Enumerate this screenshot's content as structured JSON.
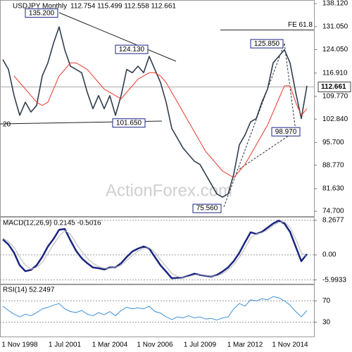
{
  "chart_data": [
    {
      "type": "line",
      "title": "USDJPY Monthly",
      "subtitle": "112.754 115.499 112.558 112.661",
      "watermark": "ActionForex.com",
      "edge_label": "20",
      "categories": [
        null,
        null,
        null,
        "1 Nov 1998",
        null,
        null,
        null,
        null,
        null,
        null,
        null,
        "1 Jul 2001",
        null,
        null,
        null,
        null,
        null,
        null,
        null,
        "1 Mar 2004",
        null,
        null,
        null,
        null,
        null,
        null,
        null,
        "1 Nov 2006",
        null,
        null,
        null,
        null,
        null,
        null,
        null,
        "1 Jul 2009",
        null,
        null,
        null,
        null,
        null,
        null,
        null,
        "1 Mar 2012",
        null,
        null,
        null,
        null,
        null,
        null,
        null,
        "1 Nov 2014",
        null,
        null,
        null
      ],
      "series": [
        {
          "color": "#2f3d4c",
          "values": [
            121,
            118,
            110,
            104,
            108,
            105,
            107,
            116,
            120,
            126,
            131,
            124,
            119,
            118,
            117,
            111,
            106,
            110,
            106,
            110,
            104,
            110,
            118,
            117,
            119,
            117,
            122,
            118,
            114,
            108,
            100,
            97,
            94,
            92,
            90,
            89,
            86,
            83,
            80,
            79,
            80,
            86,
            95,
            98,
            102,
            103,
            108,
            112,
            120,
            122,
            124,
            120,
            111,
            103,
            113
          ]
        },
        {
          "color": "#e8392f",
          "values": [
            null,
            null,
            116,
            114,
            112,
            110,
            108,
            107,
            108,
            112,
            116,
            118,
            120,
            120,
            119,
            118,
            116,
            114,
            112,
            111,
            110,
            109,
            111,
            113,
            115,
            116,
            117,
            117,
            116,
            114,
            111,
            108,
            105,
            102,
            99,
            96,
            93,
            91,
            89,
            87,
            86,
            85,
            87,
            89,
            92,
            95,
            98,
            101,
            105,
            109,
            113,
            113,
            108,
            104,
            106
          ]
        }
      ],
      "ylim": [
        73,
        139.2
      ],
      "yticks": [
        {
          "value": 138.12,
          "label": "138.120"
        },
        {
          "value": 131.05,
          "label": "131.050"
        },
        {
          "value": 124.05,
          "label": "124.050"
        },
        {
          "value": 116.91,
          "label": "116.910"
        },
        {
          "value": 109.77,
          "label": "109.770"
        },
        {
          "value": 102.84,
          "label": "102.840"
        },
        {
          "value": 95.7,
          "label": "95.700"
        },
        {
          "value": 88.77,
          "label": "88.770"
        },
        {
          "value": 81.63,
          "label": "81.630"
        },
        {
          "value": 74.7,
          "label": "74.700"
        }
      ],
      "last_price": {
        "value": 112.661,
        "label": "112.661"
      },
      "level": {
        "value": 130.05,
        "label": "FE 61.8"
      },
      "annotations": [
        {
          "value": 135.2,
          "label": "135.200",
          "index": 10
        },
        {
          "value": 124.13,
          "label": "124.130",
          "index": 26
        },
        {
          "value": 125.85,
          "label": "125.850",
          "index": 50
        },
        {
          "value": 101.65,
          "label": "101.650",
          "index": 20
        },
        {
          "value": 98.97,
          "label": "98.970",
          "index": 53
        },
        {
          "value": 75.56,
          "label": "75.560",
          "index": 39
        }
      ]
    },
    {
      "type": "line",
      "title": "MACD(12,26,9) 0.2145 -0.5016",
      "series": [
        {
          "color": "#1a2580",
          "values": [
            3.7,
            2.5,
            0.5,
            -2.5,
            -3.9,
            -3.6,
            -2.5,
            -0.5,
            2,
            3.8,
            6,
            6.2,
            3.5,
            1,
            -0.8,
            -2,
            -3,
            -3.2,
            -3.5,
            -3,
            -3,
            -2,
            -0.5,
            0.8,
            1.5,
            2,
            1.5,
            -0.5,
            -2.5,
            -4,
            -5.6,
            -5.5,
            -5.4,
            -5,
            -4.5,
            -4.8,
            -5,
            -5.2,
            -4.8,
            -4,
            -3,
            -1.5,
            0.5,
            3,
            5.4,
            5,
            5.5,
            6.5,
            7.5,
            8.2,
            7.5,
            5.5,
            2,
            -1.5,
            0.2
          ]
        },
        {
          "color": "#b5b5b5",
          "values": [
            4,
            3.2,
            1.8,
            -0.5,
            -2.5,
            -3.4,
            -3,
            -1.8,
            0.3,
            2.5,
            4.5,
            5.8,
            5,
            2.8,
            0.8,
            -0.8,
            -2,
            -2.8,
            -3.2,
            -3.2,
            -3,
            -2.5,
            -1.3,
            -0.1,
            0.9,
            1.6,
            1.7,
            0.6,
            -1.2,
            -2.8,
            -4.4,
            -5.2,
            -5.4,
            -5.2,
            -4.8,
            -4.7,
            -4.9,
            -5.1,
            -5,
            -4.5,
            -3.6,
            -2.3,
            -0.6,
            1.6,
            4,
            5,
            5.3,
            6,
            7,
            7.8,
            7.9,
            6.6,
            3.8,
            0.5,
            -0.5
          ]
        }
      ],
      "ylim": [
        -6.9,
        9.1
      ],
      "yticks": [
        8.2677,
        {
          "value": 0,
          "label": "0.00"
        },
        -5.9933
      ]
    },
    {
      "type": "line",
      "title": "RSI(14) 52.2497",
      "series": [
        {
          "color": "#3d8fd6",
          "values": [
            60,
            52,
            45,
            40,
            45,
            42,
            48,
            55,
            58,
            62,
            65,
            55,
            50,
            48,
            52,
            45,
            42,
            48,
            44,
            50,
            42,
            52,
            58,
            55,
            57,
            55,
            60,
            50,
            47,
            40,
            35,
            40,
            38,
            42,
            38,
            40,
            36,
            37,
            34,
            38,
            40,
            55,
            65,
            60,
            72,
            70,
            74,
            72,
            78,
            76,
            70,
            62,
            50,
            40,
            52
          ]
        }
      ],
      "ylim": [
        3,
        101
      ],
      "yticks": [
        70,
        30
      ]
    }
  ]
}
